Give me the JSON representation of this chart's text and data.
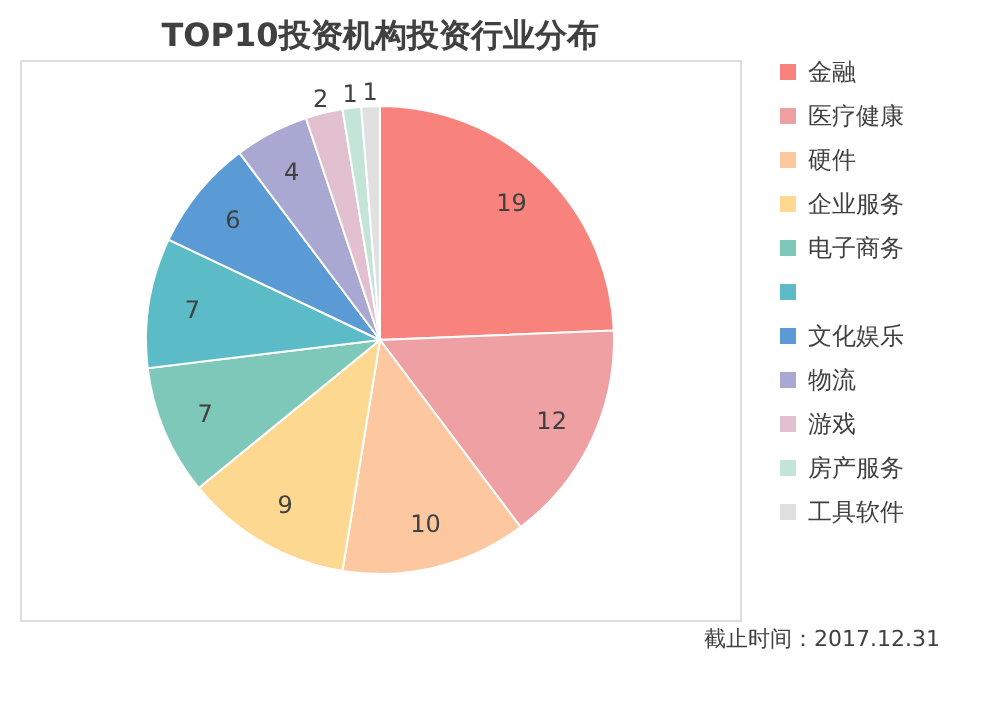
{
  "chart_data": {
    "type": "pie",
    "title": "TOP10投资机构投资行业分布",
    "categories": [
      "金融",
      "医疗健康",
      "硬件",
      "企业服务",
      "电子商务",
      null,
      "文化娱乐",
      "物流",
      "游戏",
      "房产服务",
      "工具软件"
    ],
    "values": [
      19,
      12,
      10,
      9,
      7,
      7,
      6,
      4,
      2,
      1,
      1
    ],
    "colors": [
      "#f8837c",
      "#eea0a2",
      "#fdc8a0",
      "#fdd890",
      "#7dc8b8",
      "#5bbcc8",
      "#5b9bd5",
      "#a8a8d3",
      "#e2c0d0",
      "#c4e4d8",
      "#e0e0e0"
    ],
    "data_labels": true,
    "legend": "right",
    "annotations": [
      "截止时间：2017.12.31"
    ]
  }
}
